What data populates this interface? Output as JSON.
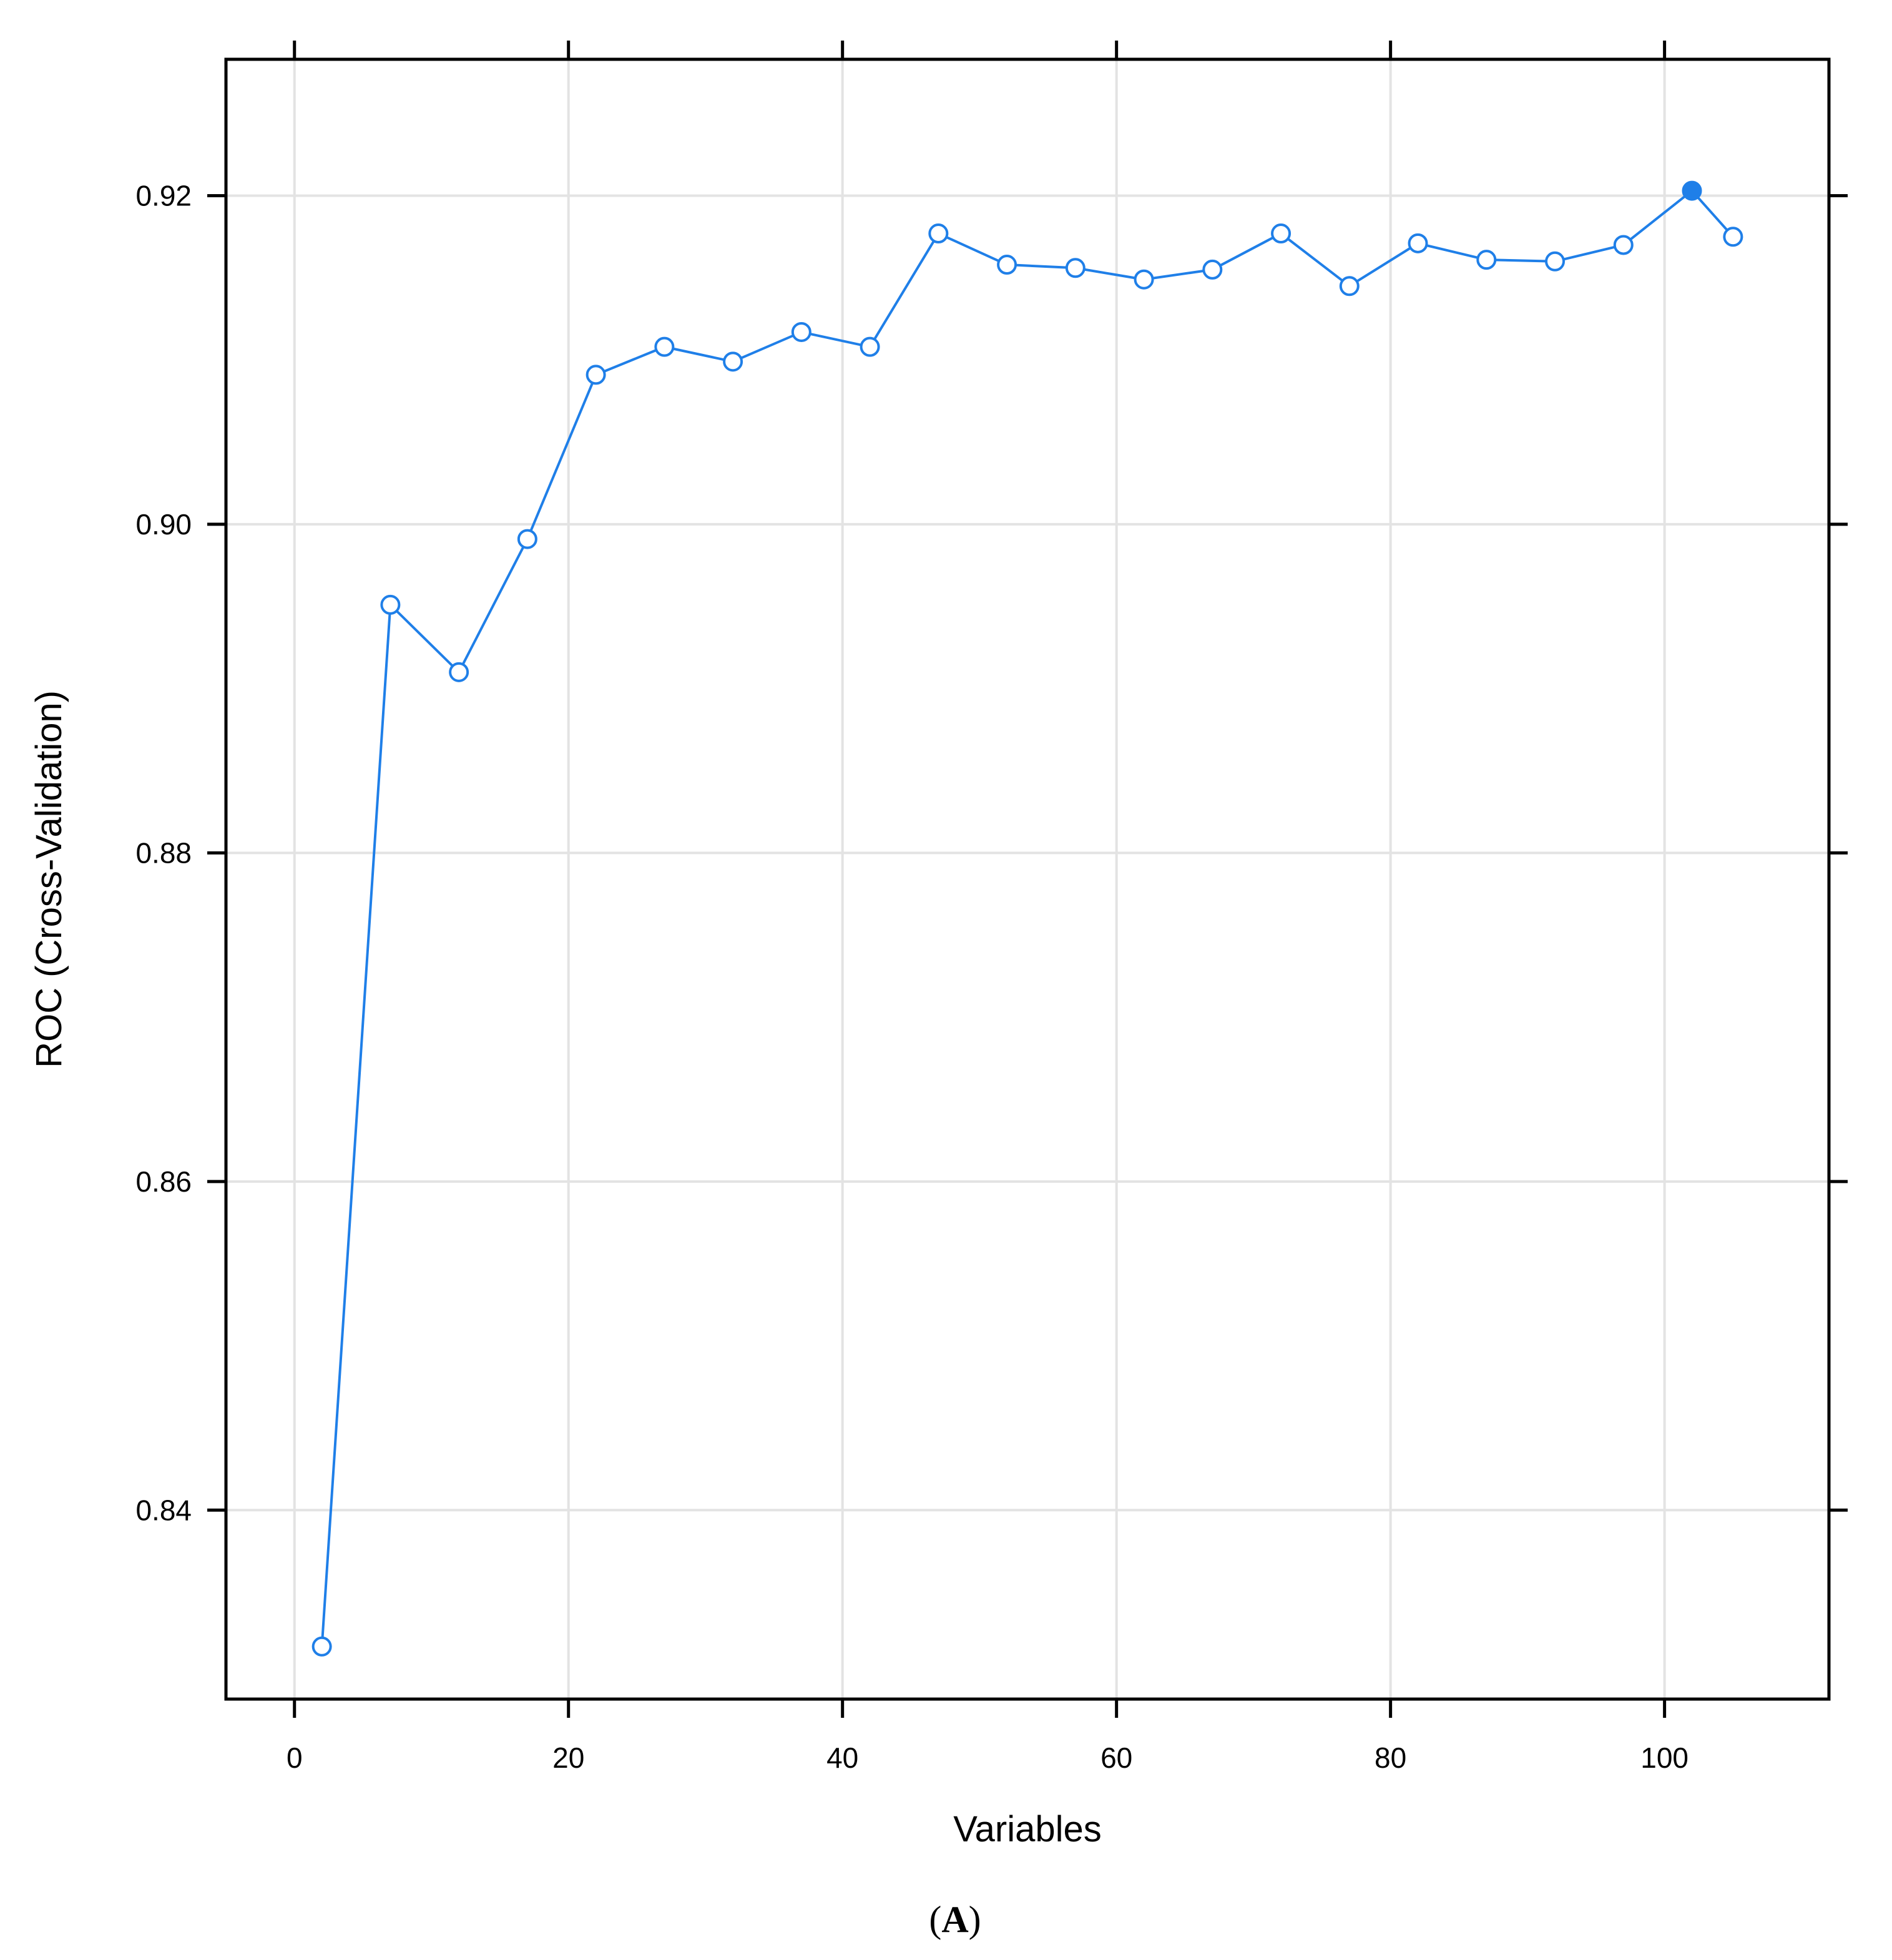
{
  "caption": {
    "text": "A",
    "open": "(",
    "close": ")"
  },
  "chart_data": {
    "type": "line",
    "xlabel": "Variables",
    "ylabel": "ROC (Cross-Validation)",
    "xlim": [
      -5,
      112
    ],
    "ylim": [
      0.8285,
      0.9283
    ],
    "xticks": [
      0,
      20,
      40,
      60,
      80,
      100
    ],
    "yticks": [
      0.84,
      0.86,
      0.88,
      0.9,
      0.92
    ],
    "ytick_labels": [
      "0.84",
      "0.86",
      "0.88",
      "0.90",
      "0.92"
    ],
    "grid": true,
    "series": [
      {
        "color": "#1f7fe8",
        "marker": "open-circle",
        "x": [
          2,
          7,
          12,
          17,
          22,
          27,
          32,
          37,
          42,
          47,
          52,
          57,
          62,
          67,
          72,
          77,
          82,
          87,
          92,
          97,
          102,
          105
        ],
        "y": [
          0.8317,
          0.8951,
          0.891,
          0.8991,
          0.9091,
          0.9108,
          0.9099,
          0.9117,
          0.9108,
          0.9177,
          0.9158,
          0.9156,
          0.9149,
          0.9155,
          0.9177,
          0.9145,
          0.9171,
          0.9161,
          0.916,
          0.917,
          0.9203,
          0.9175
        ]
      }
    ],
    "highlight": {
      "x": 102,
      "y": 0.9203,
      "marker": "filled-circle"
    }
  }
}
